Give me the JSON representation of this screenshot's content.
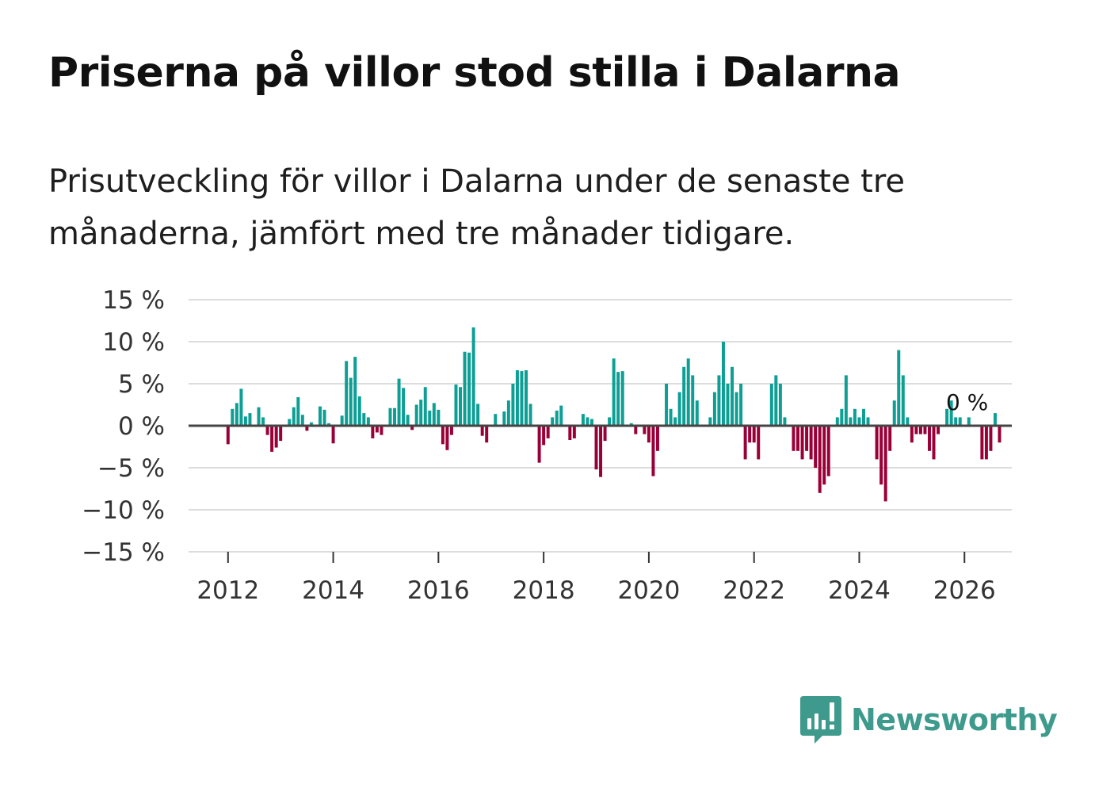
{
  "title": "Priserna på villor stod stilla i Dalarna",
  "subtitle": "Prisutveckling för villor i Dalarna under de senaste tre månaderna, jämfört med tre månader tidigare.",
  "brand": {
    "name": "Newsworthy",
    "icon": "newsworthy-logo-icon",
    "color": "#3e9a8c"
  },
  "colors": {
    "positive": "#0d9e94",
    "negative": "#9a0038",
    "grid": "#dcdcdc",
    "zero_line": "#444444"
  },
  "chart_data": {
    "type": "bar",
    "title": "Priserna på villor stod stilla i Dalarna",
    "xlabel": "",
    "ylabel": "",
    "ylim": [
      -15,
      15
    ],
    "xlim": [
      2011.25,
      2026.9
    ],
    "y_ticks": [
      15,
      10,
      5,
      0,
      -5,
      -10,
      -15
    ],
    "y_tick_labels": [
      "15 %",
      "10 %",
      "5 %",
      "0 %",
      "−5 %",
      "−10 %",
      "−15 %"
    ],
    "x_ticks": [
      2012,
      2014,
      2016,
      2018,
      2020,
      2022,
      2024,
      2026
    ],
    "x_tick_labels": [
      "2012",
      "2014",
      "2016",
      "2018",
      "2020",
      "2022",
      "2024",
      "2026"
    ],
    "grid": true,
    "start": 2012,
    "step_months": 1,
    "values": [
      -2.2,
      2,
      2.7,
      4.4,
      1.1,
      1.5,
      0,
      2.2,
      1,
      -1.1,
      -3.1,
      -2.6,
      -1.8,
      0,
      0.8,
      2.2,
      3.4,
      1.3,
      -0.6,
      0.4,
      0,
      2.3,
      1.9,
      0.3,
      -2.1,
      0,
      1.2,
      7.7,
      5.7,
      8.2,
      3.5,
      1.5,
      1,
      -1.5,
      -0.8,
      -1.1,
      0,
      2.1,
      2.1,
      5.6,
      4.5,
      1.3,
      -0.5,
      2.5,
      3.1,
      4.6,
      1.8,
      2.7,
      1.9,
      -2.2,
      -2.9,
      -1.1,
      4.9,
      4.6,
      8.8,
      8.7,
      11.7,
      2.6,
      -1.2,
      -2,
      0,
      1.4,
      0,
      1.7,
      3,
      5,
      6.6,
      6.5,
      6.6,
      2.6,
      0,
      -4.4,
      -2.3,
      -1.5,
      1,
      1.8,
      2.4,
      0,
      -1.7,
      -1.5,
      0,
      1.4,
      1,
      0.8,
      -5.2,
      -6.1,
      -1.8,
      1,
      8,
      6.4,
      6.5,
      0,
      0.3,
      -1,
      0,
      -1,
      -2,
      -6,
      -3,
      0,
      5,
      2,
      1,
      4,
      7,
      8,
      6,
      3,
      0,
      0,
      1,
      4,
      6,
      10,
      5,
      7,
      4,
      5,
      -4,
      -2,
      -2,
      -4,
      0,
      0,
      5,
      6,
      5,
      1,
      0,
      -3,
      -3,
      -4,
      -3,
      -4,
      -5,
      -8,
      -7,
      -6,
      0,
      1,
      2,
      6,
      1,
      2,
      1,
      2,
      1,
      0,
      -4,
      -7,
      -9,
      -3,
      3,
      9,
      6,
      1,
      -2,
      -1,
      -1,
      -1,
      -3,
      -4,
      -1,
      0,
      2,
      3,
      1,
      1,
      0,
      1,
      0,
      0,
      -4,
      -4,
      -3,
      1.5,
      -2
    ],
    "annotations": [
      {
        "label": "0 %",
        "x": 2025.9,
        "y": 0
      }
    ]
  }
}
